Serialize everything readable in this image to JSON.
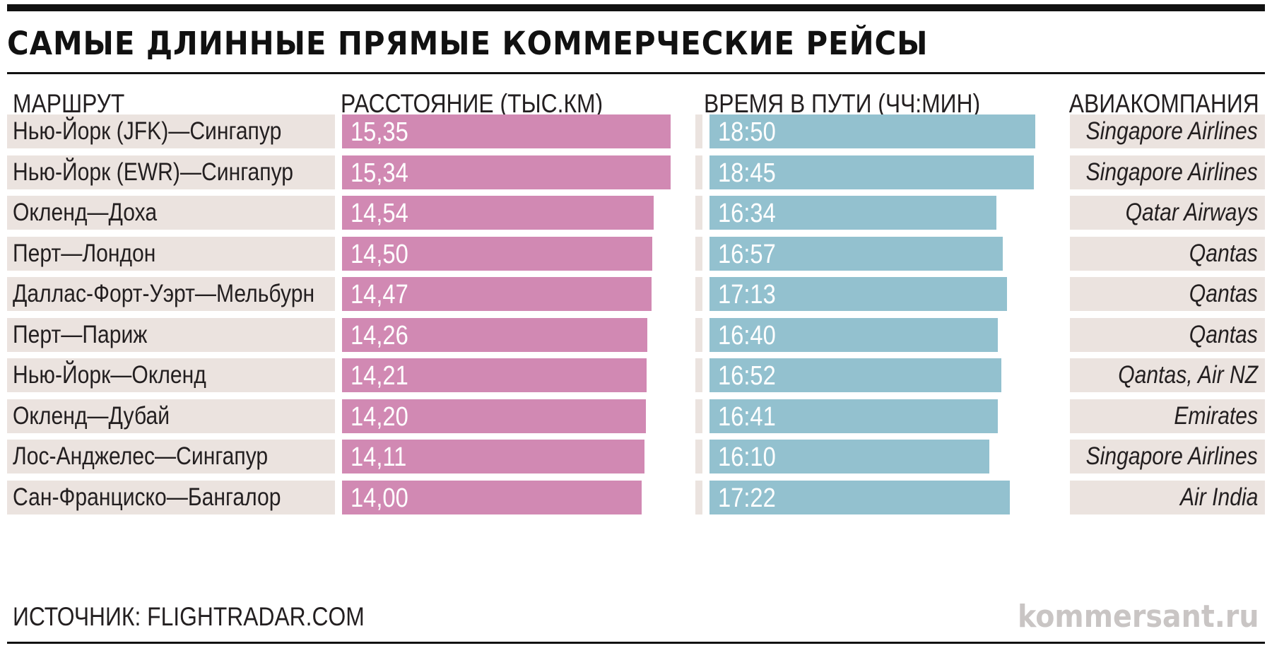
{
  "title": "САМЫЕ ДЛИННЫЕ ПРЯМЫЕ КОММЕРЧЕСКИЕ РЕЙСЫ",
  "headers": {
    "route": "МАРШРУТ",
    "distance": "РАССТОЯНИЕ (ТЫС.КМ)",
    "time": "ВРЕМЯ В ПУТИ (ЧЧ:МИН)",
    "airline": "АВИАКОМПАНИЯ"
  },
  "source": "ИСТОЧНИК: FLIGHTRADAR.COM",
  "brand": "kommersant.ru",
  "colors": {
    "distance_bar": "#d189b3",
    "time_bar": "#93c1cf",
    "row_background": "#ebe3df",
    "rules": "#111111"
  },
  "chart_data": {
    "type": "table",
    "title": "САМЫЕ ДЛИННЫЕ ПРЯМЫЕ КОММЕРЧЕСКИЕ РЕЙСЫ",
    "columns": [
      "МАРШРУТ",
      "РАССТОЯНИЕ (ТЫС.КМ)",
      "ВРЕМЯ В ПУТИ (ЧЧ:МИН)",
      "АВИАКОМПАНИЯ"
    ],
    "distance_scale_max": 16.5,
    "time_scale_max_minutes": 1250,
    "rows": [
      {
        "route": "Нью-Йорк (JFK)—Сингапур",
        "distance": "15,35",
        "distance_value": 15.35,
        "time": "18:50",
        "time_minutes": 1130,
        "airline": "Singapore Airlines"
      },
      {
        "route": "Нью-Йорк (EWR)—Сингапур",
        "distance": "15,34",
        "distance_value": 15.34,
        "time": "18:45",
        "time_minutes": 1125,
        "airline": "Singapore Airlines"
      },
      {
        "route": "Окленд—Доха",
        "distance": "14,54",
        "distance_value": 14.54,
        "time": "16:34",
        "time_minutes": 994,
        "airline": "Qatar Airways"
      },
      {
        "route": "Перт—Лондон",
        "distance": "14,50",
        "distance_value": 14.5,
        "time": "16:57",
        "time_minutes": 1017,
        "airline": "Qantas"
      },
      {
        "route": "Даллас-Форт-Уэрт—Мельбурн",
        "distance": "14,47",
        "distance_value": 14.47,
        "time": "17:13",
        "time_minutes": 1033,
        "airline": "Qantas"
      },
      {
        "route": "Перт—Париж",
        "distance": "14,26",
        "distance_value": 14.26,
        "time": "16:40",
        "time_minutes": 1000,
        "airline": "Qantas"
      },
      {
        "route": "Нью-Йорк—Окленд",
        "distance": "14,21",
        "distance_value": 14.21,
        "time": "16:52",
        "time_minutes": 1012,
        "airline": "Qantas, Air NZ"
      },
      {
        "route": "Окленд—Дубай",
        "distance": "14,20",
        "distance_value": 14.2,
        "time": "16:41",
        "time_minutes": 1001,
        "airline": "Emirates"
      },
      {
        "route": "Лос-Анджелес—Сингапур",
        "distance": "14,11",
        "distance_value": 14.11,
        "time": "16:10",
        "time_minutes": 970,
        "airline": "Singapore Airlines"
      },
      {
        "route": "Сан-Франциско—Бангалор",
        "distance": "14,00",
        "distance_value": 14.0,
        "time": "17:22",
        "time_minutes": 1042,
        "airline": "Air India"
      }
    ]
  }
}
